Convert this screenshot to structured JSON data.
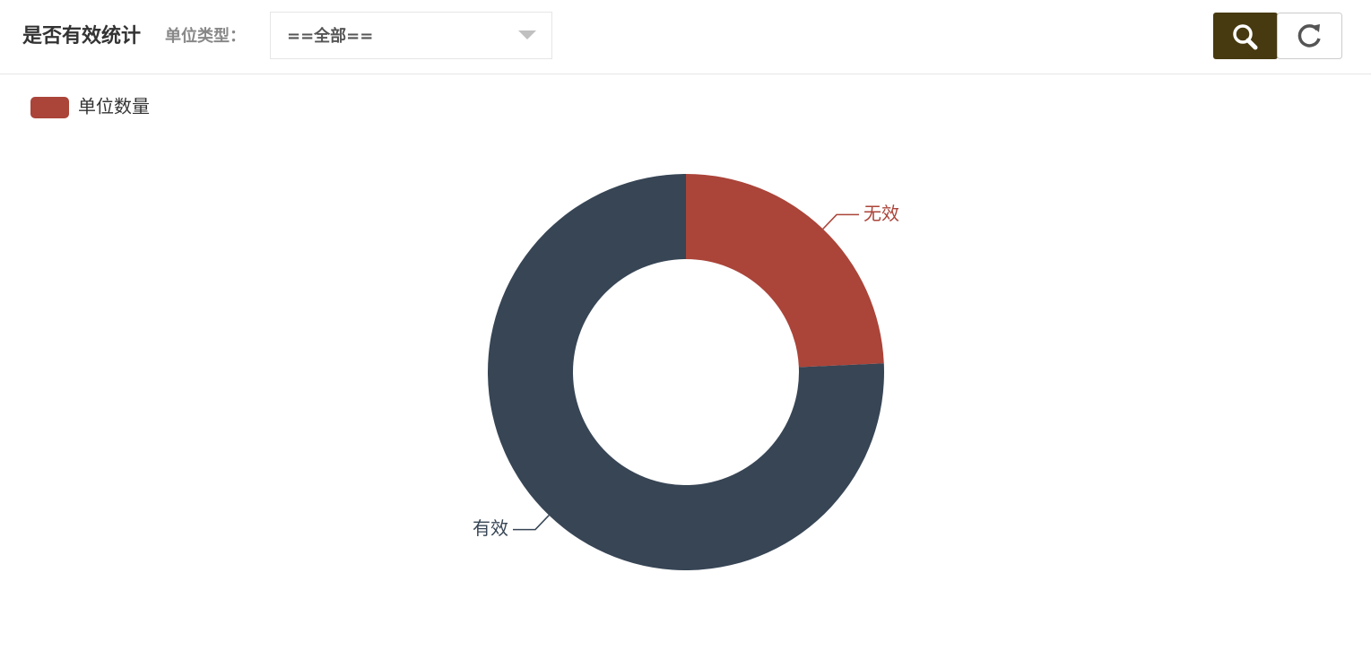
{
  "header": {
    "title": "是否有效统计",
    "filter_label": "单位类型：",
    "select_value": "==全部=="
  },
  "chart_data": {
    "type": "pie",
    "legend": "top-left",
    "series": [
      {
        "name": "单位数量",
        "categories": [
          "无效",
          "有效"
        ],
        "values": [
          24.3,
          75.7
        ],
        "colors": [
          "#ab4439",
          "#374555"
        ]
      }
    ]
  }
}
